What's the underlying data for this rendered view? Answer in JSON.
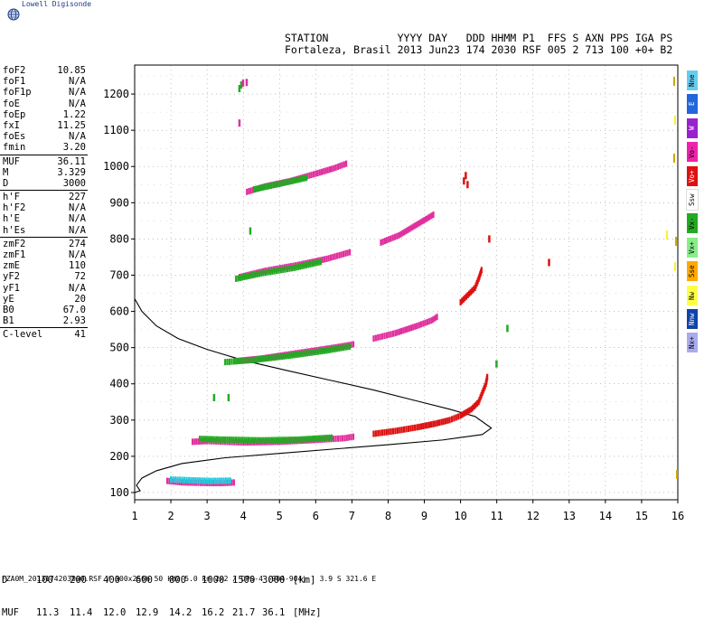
{
  "header": {
    "logo_text": "Lowell Digisonde",
    "line1": "STATION           YYYY DAY   DDD HHMM P1  FFS S AXN PPS IGA PS",
    "line2": "Fortaleza, Brasil 2013 Jun23 174 2030 RSF 005 2 713 100 +0+ B2"
  },
  "params": [
    {
      "name": "foF2",
      "value": "10.85"
    },
    {
      "name": "foF1",
      "value": "N/A"
    },
    {
      "name": "foF1p",
      "value": "N/A"
    },
    {
      "name": "foE",
      "value": "N/A"
    },
    {
      "name": "foEp",
      "value": "1.22"
    },
    {
      "name": "fxI",
      "value": "11.25"
    },
    {
      "name": "foEs",
      "value": "N/A"
    },
    {
      "name": "fmin",
      "value": "3.20"
    },
    {
      "sep": true
    },
    {
      "name": "MUF",
      "value": "36.11"
    },
    {
      "name": "M",
      "value": "3.329"
    },
    {
      "name": "D",
      "value": "3000"
    },
    {
      "sep": true
    },
    {
      "name": "h'F",
      "value": "227"
    },
    {
      "name": "h'F2",
      "value": "N/A"
    },
    {
      "name": "h'E",
      "value": "N/A"
    },
    {
      "name": "h'Es",
      "value": "N/A"
    },
    {
      "sep": true
    },
    {
      "name": "zmF2",
      "value": "274"
    },
    {
      "name": "zmF1",
      "value": "N/A"
    },
    {
      "name": "zmE",
      "value": "110"
    },
    {
      "name": "yF2",
      "value": "72"
    },
    {
      "name": "yF1",
      "value": "N/A"
    },
    {
      "name": "yE",
      "value": "20"
    },
    {
      "name": "B0",
      "value": "67.0"
    },
    {
      "name": "B1",
      "value": "2.93"
    },
    {
      "sep": true
    },
    {
      "name": "C-level",
      "value": "41"
    }
  ],
  "muf_table": {
    "d_label": "D",
    "muf_label": "MUF",
    "d_values": [
      "100",
      "200",
      "400",
      "600",
      "800",
      "1000",
      "1500",
      "3000"
    ],
    "muf_values": [
      "11.3",
      "11.4",
      "12.0",
      "12.9",
      "14.2",
      "16.2",
      "21.7",
      "36.1"
    ],
    "d_unit": "[km]",
    "muf_unit": "[MHz]"
  },
  "footer": "FZA0M_2013174203000.RSF / 300x256h 50 kHz 5.0 km 2x2 / DPS-4 (904-904)   3.9 S 321.6 E",
  "legend": [
    {
      "label": "Nne",
      "color": "#66ccee"
    },
    {
      "label": "E",
      "color": "#2266dd"
    },
    {
      "label": "W",
      "color": "#9922cc"
    },
    {
      "label": "Vo-",
      "color": "#ee22aa"
    },
    {
      "label": "Vo+",
      "color": "#dd1111"
    },
    {
      "label": "Ssw",
      "color": "#ffffff"
    },
    {
      "label": "Vx-",
      "color": "#22aa22"
    },
    {
      "label": "Vx+",
      "color": "#88ee88"
    },
    {
      "label": "Sse",
      "color": "#ffaa00"
    },
    {
      "label": "Nw",
      "color": "#ffff44"
    },
    {
      "label": "Nnw",
      "color": "#1144aa"
    },
    {
      "label": "Nx+",
      "color": "#aaaaee"
    }
  ],
  "chart_data": {
    "type": "scatter",
    "xlim": [
      1,
      16
    ],
    "ylim": [
      80,
      1280
    ],
    "x_ticks": [
      "1",
      "2",
      "3",
      "4",
      "5",
      "6",
      "7",
      "8",
      "9",
      "10",
      "11",
      "12",
      "13",
      "14",
      "15",
      "16"
    ],
    "y_ticks": [
      "100",
      "200",
      "300",
      "400",
      "500",
      "600",
      "700",
      "800",
      "900",
      "1000",
      "1100",
      "1200"
    ],
    "grid": true,
    "traces": [
      {
        "name": "ground-1",
        "color": "#e0309e",
        "points": [
          [
            2.6,
            240
          ],
          [
            3.0,
            242
          ],
          [
            3.5,
            240
          ],
          [
            4.0,
            238
          ],
          [
            5.0,
            240
          ],
          [
            6.0,
            245
          ],
          [
            6.8,
            250
          ],
          [
            7.1,
            255
          ]
        ]
      },
      {
        "name": "ground-2",
        "color": "#22aa22",
        "points": [
          [
            2.8,
            248
          ],
          [
            3.5,
            246
          ],
          [
            4.5,
            244
          ],
          [
            5.5,
            246
          ],
          [
            6.5,
            252
          ]
        ]
      },
      {
        "name": "ordinary-1",
        "color": "#dd1111",
        "points": [
          [
            7.6,
            262
          ],
          [
            8.2,
            270
          ],
          [
            8.8,
            280
          ],
          [
            9.3,
            290
          ],
          [
            9.7,
            300
          ],
          [
            10.0,
            312
          ],
          [
            10.3,
            330
          ],
          [
            10.5,
            350
          ],
          [
            10.6,
            375
          ],
          [
            10.7,
            400
          ],
          [
            10.75,
            425
          ]
        ]
      },
      {
        "name": "low-E",
        "color": "#e0309e",
        "points": [
          [
            1.9,
            132
          ],
          [
            2.3,
            128
          ],
          [
            2.7,
            127
          ],
          [
            3.0,
            126
          ],
          [
            3.4,
            126
          ],
          [
            3.8,
            128
          ]
        ]
      },
      {
        "name": "low-E2",
        "color": "#22ccdd",
        "points": [
          [
            2.0,
            136
          ],
          [
            2.5,
            134
          ],
          [
            3.1,
            132
          ],
          [
            3.7,
            133
          ]
        ]
      },
      {
        "name": "multi-2",
        "color": "#e0309e",
        "points": [
          [
            3.8,
            463
          ],
          [
            4.5,
            470
          ],
          [
            5.5,
            485
          ],
          [
            6.5,
            500
          ],
          [
            7.1,
            510
          ]
        ]
      },
      {
        "name": "multi-2g",
        "color": "#22aa22",
        "points": [
          [
            3.5,
            460
          ],
          [
            4.3,
            466
          ],
          [
            5.3,
            478
          ],
          [
            6.3,
            492
          ],
          [
            7.0,
            504
          ]
        ]
      },
      {
        "name": "multi-2b",
        "color": "#e0309e",
        "points": [
          [
            7.6,
            525
          ],
          [
            8.2,
            540
          ],
          [
            8.8,
            560
          ],
          [
            9.2,
            575
          ],
          [
            9.4,
            588
          ]
        ]
      },
      {
        "name": "multi-2r",
        "color": "#dd1111",
        "points": [
          [
            10.0,
            625
          ],
          [
            10.2,
            645
          ],
          [
            10.4,
            665
          ],
          [
            10.5,
            690
          ],
          [
            10.6,
            720
          ]
        ]
      },
      {
        "name": "multi-3",
        "color": "#e0309e",
        "points": [
          [
            3.9,
            695
          ],
          [
            4.6,
            712
          ],
          [
            5.5,
            728
          ],
          [
            6.3,
            745
          ],
          [
            7.0,
            765
          ]
        ]
      },
      {
        "name": "multi-3g",
        "color": "#22aa22",
        "points": [
          [
            3.8,
            690
          ],
          [
            4.5,
            705
          ],
          [
            5.4,
            720
          ],
          [
            6.2,
            738
          ]
        ]
      },
      {
        "name": "multi-3b",
        "color": "#e0309e",
        "points": [
          [
            7.8,
            790
          ],
          [
            8.3,
            810
          ],
          [
            8.8,
            840
          ],
          [
            9.3,
            870
          ]
        ]
      },
      {
        "name": "multi-4",
        "color": "#e0309e",
        "points": [
          [
            4.1,
            930
          ],
          [
            4.6,
            945
          ],
          [
            5.3,
            960
          ],
          [
            6.0,
            980
          ],
          [
            6.5,
            995
          ],
          [
            6.9,
            1010
          ]
        ]
      },
      {
        "name": "multi-4g",
        "color": "#22aa22",
        "points": [
          [
            4.3,
            937
          ],
          [
            5.0,
            952
          ],
          [
            5.8,
            970
          ]
        ]
      },
      {
        "name": "speckle-r",
        "color": "#dd1111",
        "points": [
          [
            10.1,
            960
          ],
          [
            10.15,
            975
          ],
          [
            10.8,
            800
          ],
          [
            12.45,
            735
          ],
          [
            10.2,
            950
          ]
        ]
      },
      {
        "name": "speckle-g",
        "color": "#22aa22",
        "points": [
          [
            3.2,
            362
          ],
          [
            3.6,
            362
          ],
          [
            3.95,
            1225
          ],
          [
            3.9,
            1215
          ],
          [
            4.2,
            822
          ],
          [
            11.3,
            553
          ],
          [
            11.0,
            455
          ]
        ]
      },
      {
        "name": "speckle-m",
        "color": "#e0309e",
        "points": [
          [
            4.0,
            1230
          ],
          [
            4.1,
            1232
          ],
          [
            3.9,
            1120
          ]
        ]
      }
    ],
    "profile": [
      [
        1.0,
        635
      ],
      [
        1.2,
        600
      ],
      [
        1.6,
        560
      ],
      [
        2.2,
        525
      ],
      [
        3.0,
        495
      ],
      [
        4.0,
        465
      ],
      [
        5.2,
        437
      ],
      [
        6.4,
        410
      ],
      [
        7.6,
        383
      ],
      [
        8.7,
        355
      ],
      [
        9.7,
        330
      ],
      [
        10.4,
        310
      ],
      [
        10.85,
        278
      ],
      [
        10.6,
        260
      ],
      [
        9.5,
        245
      ],
      [
        8.0,
        232
      ],
      [
        6.5,
        220
      ],
      [
        5.0,
        208
      ],
      [
        3.5,
        196
      ],
      [
        2.3,
        180
      ],
      [
        1.6,
        160
      ],
      [
        1.2,
        140
      ],
      [
        1.05,
        120
      ],
      [
        1.15,
        105
      ],
      [
        1.0,
        100
      ]
    ]
  }
}
